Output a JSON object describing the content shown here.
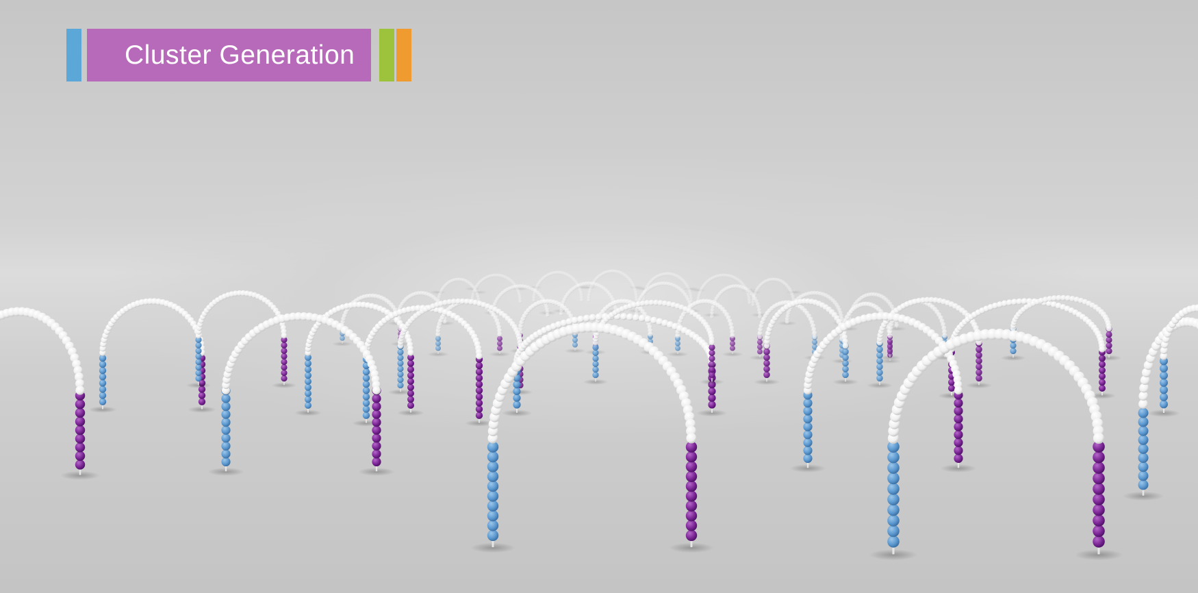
{
  "title": {
    "text": "Cluster Generation",
    "box_color": "#b76ab9",
    "accent_colors": {
      "left": "#5ba8d8",
      "green": "#9dc23b",
      "orange": "#f09b2f"
    }
  },
  "scene": {
    "description_icon": "dna-cluster-arches",
    "colors": {
      "bead_white": "#f7f7f7",
      "bead_blue": "#5b98cf",
      "bead_purple": "#7a2594",
      "pin": "#e6e6e6"
    }
  }
}
